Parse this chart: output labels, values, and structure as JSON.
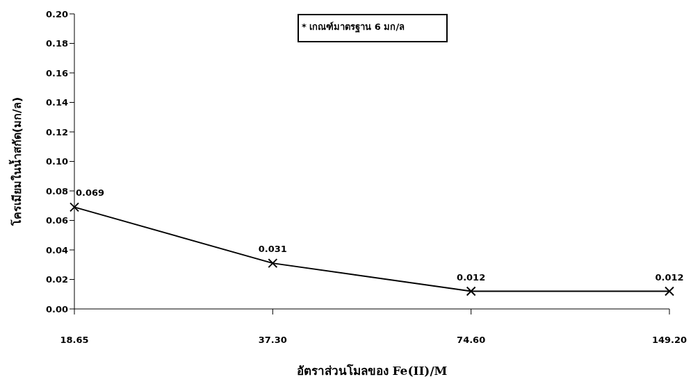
{
  "chart_data": {
    "type": "line",
    "xlabel": "อัตราส่วนโมลของ Fe(II)/M",
    "ylabel": "โครเมียมในน้ำสกัด(มก/ล)",
    "annotations": [
      "* เกณฑ์มาตรฐาน 6 มก/ล"
    ],
    "categories": [
      "18.65",
      "37.30",
      "74.60",
      "149.20"
    ],
    "series": [
      {
        "color": "#000000",
        "values": [
          0.069,
          0.031,
          0.012,
          0.012
        ]
      }
    ],
    "ylim": [
      0,
      0.2
    ],
    "yticks": [
      {
        "value": 0,
        "label": "0.00"
      },
      {
        "value": 0.02,
        "label": "0.02"
      },
      {
        "value": 0.04,
        "label": "0.04"
      },
      {
        "value": 0.06,
        "label": "0.06"
      },
      {
        "value": 0.08,
        "label": "0.08"
      },
      {
        "value": 0.1,
        "label": "0.10"
      },
      {
        "value": 0.12,
        "label": "0.12"
      },
      {
        "value": 0.14,
        "label": "0.14"
      },
      {
        "value": 0.16,
        "label": "0.16"
      },
      {
        "value": 0.18,
        "label": "0.18"
      },
      {
        "value": 0.2,
        "label": "0.20"
      }
    ],
    "data_labels": true,
    "marker": "cross",
    "line_style": "solid",
    "grid": false
  }
}
